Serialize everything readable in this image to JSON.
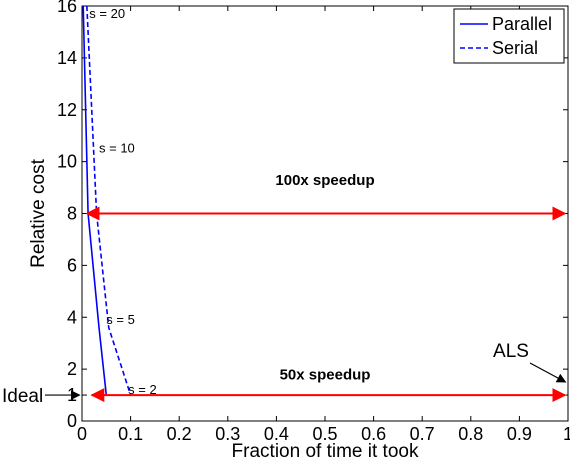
{
  "chart_data": {
    "type": "line",
    "title": "",
    "xlabel": "Fraction of time it took",
    "ylabel": "Relative cost",
    "xlim": [
      0,
      1
    ],
    "ylim": [
      0,
      16
    ],
    "xticks": [
      0,
      0.1,
      0.2,
      0.3,
      0.4,
      0.5,
      0.6,
      0.7,
      0.8,
      0.9,
      1
    ],
    "xtick_labels": [
      "0",
      "0.1",
      "0.2",
      "0.3",
      "0.4",
      "0.5",
      "0.6",
      "0.7",
      "0.8",
      "0.9",
      "1"
    ],
    "yticks": [
      0,
      1,
      2,
      4,
      6,
      8,
      10,
      12,
      14,
      16
    ],
    "ytick_labels": [
      "0",
      "1",
      "2",
      "4",
      "6",
      "8",
      "10",
      "12",
      "14",
      "16"
    ],
    "grid": false,
    "legend_position": "top-right",
    "series": [
      {
        "name": "Parallel",
        "style": "solid",
        "color": "#0000ff",
        "x": [
          0.0025,
          0.0125,
          0.035,
          0.05
        ],
        "y": [
          16,
          8,
          3.6,
          1
        ]
      },
      {
        "name": "Serial",
        "style": "dashed",
        "color": "#0000ff",
        "x": [
          0.01,
          0.03,
          0.055,
          0.1
        ],
        "y": [
          16,
          8,
          3.6,
          1
        ]
      }
    ],
    "point_labels": [
      {
        "text": "s = 20",
        "x": 0.015,
        "y": 15.7
      },
      {
        "text": "s = 10",
        "x": 0.035,
        "y": 10.5
      },
      {
        "text": "s = 5",
        "x": 0.05,
        "y": 3.9
      },
      {
        "text": "s = 2",
        "x": 0.095,
        "y": 1.2
      }
    ],
    "annotations": [
      {
        "type": "double-arrow",
        "label": "100x speedup",
        "x": [
          0.01,
          1
        ],
        "y": 8,
        "color": "#ff0000",
        "label_x": 0.5,
        "label_y": 9.1
      },
      {
        "type": "double-arrow",
        "label": "50x speedup",
        "x": [
          0.02,
          1
        ],
        "y": 1,
        "color": "#ff0000",
        "label_x": 0.5,
        "label_y": 1.6
      },
      {
        "type": "arrow",
        "label": "Ideal",
        "from": [
          -0.12,
          1
        ],
        "to": [
          -0.005,
          1
        ],
        "color": "#000000"
      },
      {
        "type": "arrow",
        "label": "ALS",
        "from": [
          0.93,
          2.6
        ],
        "to": [
          0.995,
          1.5
        ],
        "color": "#000000"
      }
    ]
  }
}
